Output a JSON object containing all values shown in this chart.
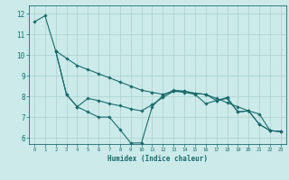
{
  "xlabel": "Humidex (Indice chaleur)",
  "xlim": [
    -0.5,
    23.5
  ],
  "ylim": [
    5.7,
    12.4
  ],
  "yticks": [
    6,
    7,
    8,
    9,
    10,
    11,
    12
  ],
  "xticks": [
    0,
    1,
    2,
    3,
    4,
    5,
    6,
    7,
    8,
    9,
    10,
    11,
    12,
    13,
    14,
    15,
    16,
    17,
    18,
    19,
    20,
    21,
    22,
    23
  ],
  "bg_color": "#cceaea",
  "grid_color": "#aad0d0",
  "line_color": "#1a6b6b",
  "series": [
    {
      "x": [
        0,
        1,
        2,
        3,
        4,
        5,
        6,
        7,
        8,
        9,
        10,
        11,
        12,
        13,
        14,
        15,
        16,
        17,
        18,
        19,
        20,
        21,
        22,
        23
      ],
      "y": [
        11.6,
        11.9,
        10.2,
        9.85,
        9.5,
        9.3,
        9.1,
        8.9,
        8.7,
        8.5,
        8.3,
        8.2,
        8.1,
        8.25,
        8.25,
        8.15,
        8.1,
        7.9,
        7.7,
        7.5,
        7.3,
        7.15,
        6.35,
        6.3
      ]
    },
    {
      "x": [
        2,
        3,
        4,
        5,
        6,
        7,
        8,
        9,
        10,
        11,
        12,
        13,
        14,
        15,
        16,
        17,
        18,
        19,
        20,
        21,
        22,
        23
      ],
      "y": [
        10.2,
        8.1,
        7.5,
        7.25,
        7.0,
        7.0,
        6.4,
        5.75,
        5.75,
        7.5,
        8.05,
        8.3,
        8.25,
        8.15,
        8.1,
        7.8,
        7.95,
        7.25,
        7.3,
        6.65,
        6.35,
        6.3
      ]
    },
    {
      "x": [
        2,
        3,
        4,
        5,
        6,
        7,
        8,
        9,
        10,
        11,
        12,
        13,
        14,
        15,
        16,
        17,
        18,
        19,
        20,
        21,
        22,
        23
      ],
      "y": [
        10.2,
        8.1,
        7.5,
        7.9,
        7.8,
        7.65,
        7.55,
        7.4,
        7.3,
        7.6,
        7.95,
        8.25,
        8.2,
        8.1,
        7.65,
        7.8,
        7.9,
        7.25,
        7.3,
        6.65,
        6.35,
        6.3
      ]
    }
  ]
}
